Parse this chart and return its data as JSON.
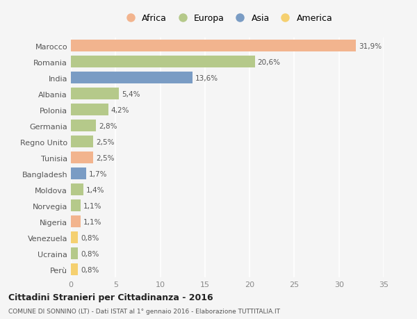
{
  "countries": [
    "Marocco",
    "Romania",
    "India",
    "Albania",
    "Polonia",
    "Germania",
    "Regno Unito",
    "Tunisia",
    "Bangladesh",
    "Moldova",
    "Norvegia",
    "Nigeria",
    "Venezuela",
    "Ucraina",
    "Perù"
  ],
  "values": [
    31.9,
    20.6,
    13.6,
    5.4,
    4.2,
    2.8,
    2.5,
    2.5,
    1.7,
    1.4,
    1.1,
    1.1,
    0.8,
    0.8,
    0.8
  ],
  "labels": [
    "31,9%",
    "20,6%",
    "13,6%",
    "5,4%",
    "4,2%",
    "2,8%",
    "2,5%",
    "2,5%",
    "1,7%",
    "1,4%",
    "1,1%",
    "1,1%",
    "0,8%",
    "0,8%",
    "0,8%"
  ],
  "continents": [
    "Africa",
    "Europa",
    "Asia",
    "Europa",
    "Europa",
    "Europa",
    "Europa",
    "Africa",
    "Asia",
    "Europa",
    "Europa",
    "Africa",
    "America",
    "Europa",
    "America"
  ],
  "colors": {
    "Africa": "#F2B48E",
    "Europa": "#B5C98A",
    "Asia": "#7A9CC4",
    "America": "#F5D070"
  },
  "title": "Cittadini Stranieri per Cittadinanza - 2016",
  "subtitle": "COMUNE DI SONNINO (LT) - Dati ISTAT al 1° gennaio 2016 - Elaborazione TUTTITALIA.IT",
  "xlim": [
    0,
    35
  ],
  "xticks": [
    0,
    5,
    10,
    15,
    20,
    25,
    30,
    35
  ],
  "background_color": "#f5f5f5",
  "grid_color": "#ffffff",
  "bar_height": 0.75
}
